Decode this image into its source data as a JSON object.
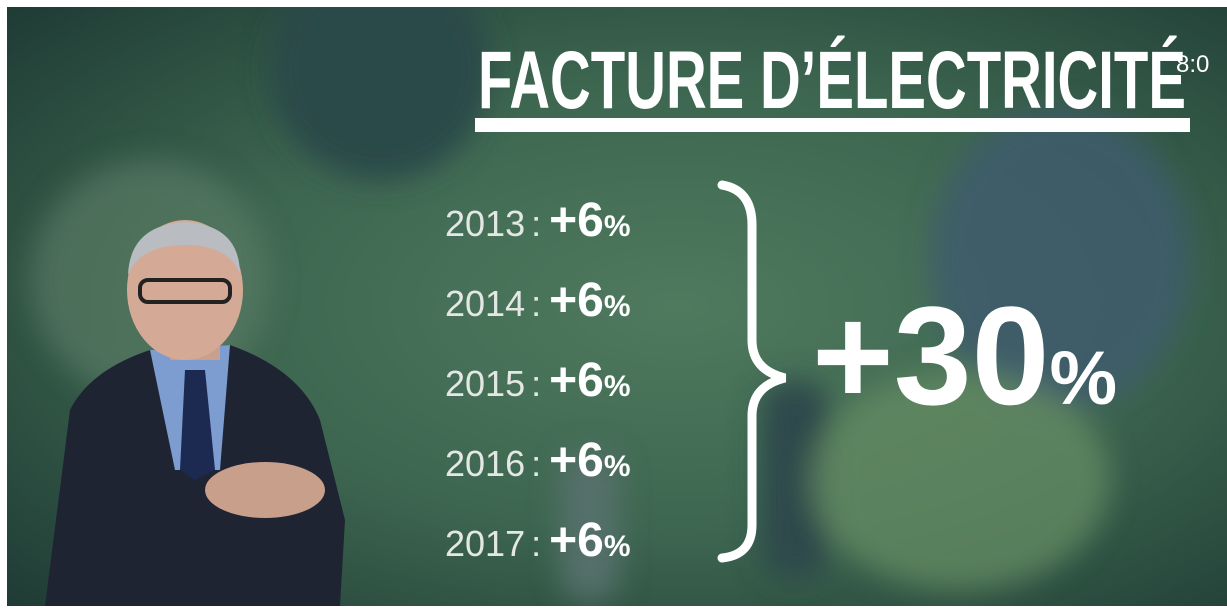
{
  "header": {
    "title": "FACTURE D’ÉLECTRICITÉ",
    "clock": "8:0"
  },
  "rows": [
    {
      "year": "2013",
      "separator": ":",
      "change": "+6",
      "unit": "%"
    },
    {
      "year": "2014",
      "separator": ":",
      "change": "+6",
      "unit": "%"
    },
    {
      "year": "2015",
      "separator": ":",
      "change": "+6",
      "unit": "%"
    },
    {
      "year": "2016",
      "separator": ":",
      "change": "+6",
      "unit": "%"
    },
    {
      "year": "2017",
      "separator": ":",
      "change": "+6",
      "unit": "%"
    }
  ],
  "total": {
    "change": "+30",
    "unit": "%"
  }
}
